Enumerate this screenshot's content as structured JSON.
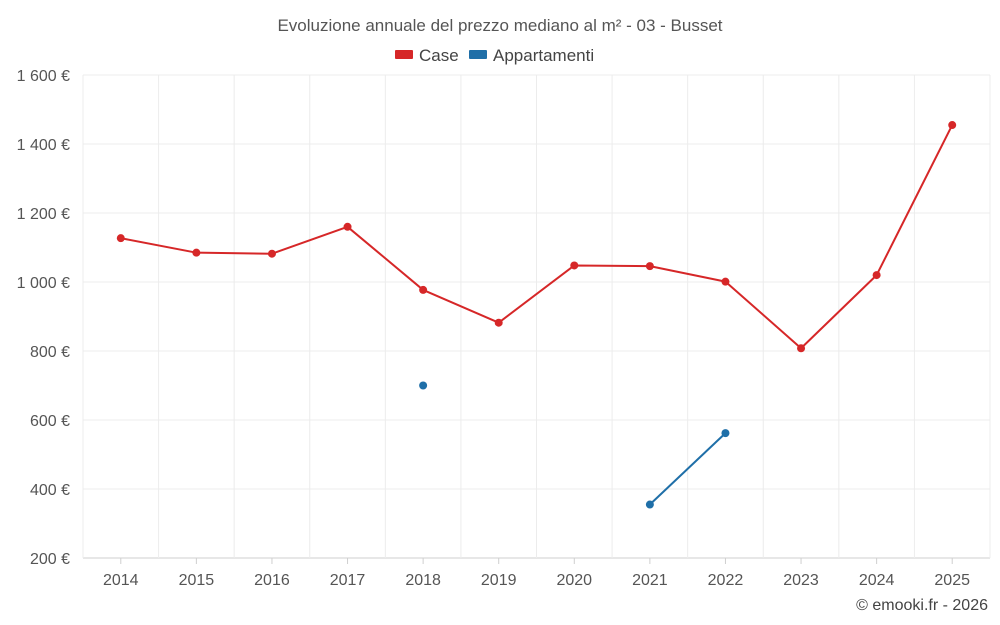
{
  "chart_data": {
    "type": "line",
    "title": "Evoluzione annuale del prezzo mediano al m² - 03 - Busset",
    "categories": [
      "2014",
      "2015",
      "2016",
      "2017",
      "2018",
      "2019",
      "2020",
      "2021",
      "2022",
      "2023",
      "2024",
      "2025"
    ],
    "y_tick_labels": [
      "200 €",
      "400 €",
      "600 €",
      "800 €",
      "1 000 €",
      "1 200 €",
      "1 400 €",
      "1 600 €"
    ],
    "y_ticks": [
      200,
      400,
      600,
      800,
      1000,
      1200,
      1400,
      1600
    ],
    "ylim": [
      200,
      1600
    ],
    "xlabel": "",
    "ylabel": "",
    "grid": true,
    "legend_position": "top-center",
    "series": [
      {
        "name": "Case",
        "color": "#d62728",
        "values": [
          1127,
          1085,
          1082,
          1160,
          977,
          882,
          1048,
          1046,
          1001,
          808,
          1020,
          1455
        ]
      },
      {
        "name": "Appartamenti",
        "color": "#1f6fa8",
        "values": [
          null,
          null,
          null,
          null,
          700,
          null,
          null,
          355,
          562,
          null,
          null,
          null
        ]
      }
    ]
  },
  "credit": "© emooki.fr - 2026"
}
